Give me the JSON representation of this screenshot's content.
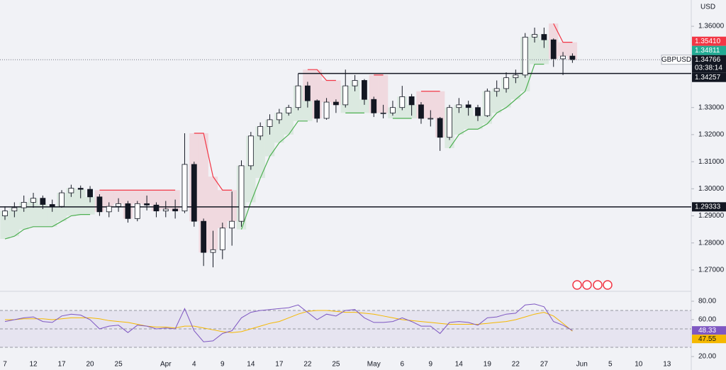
{
  "chart_data": [
    {
      "type": "candlestick",
      "symbol": "GBPUSD",
      "currency": "USD",
      "categories": [
        "7",
        null,
        null,
        "12",
        null,
        null,
        "17",
        null,
        null,
        "20",
        null,
        null,
        "25",
        null,
        null,
        null,
        null,
        "Apr",
        null,
        null,
        "4",
        null,
        null,
        "9",
        null,
        null,
        "14",
        null,
        null,
        "17",
        null,
        null,
        "22",
        null,
        null,
        "25",
        null,
        null,
        null,
        "May",
        null,
        null,
        "6",
        null,
        null,
        "9",
        null,
        null,
        "14",
        null,
        null,
        "19",
        null,
        null,
        "22",
        null,
        null,
        "27",
        null,
        null,
        null,
        "Jun",
        null,
        null,
        "5",
        null,
        null,
        "10",
        null,
        null,
        "13"
      ],
      "open": [
        1.29,
        1.2918,
        1.293,
        1.295,
        1.2965,
        1.2942,
        1.2935,
        1.2985,
        1.3002,
        1.2998,
        1.297,
        1.2915,
        1.2935,
        1.2945,
        1.289,
        1.2945,
        1.294,
        1.2918,
        1.2925,
        1.2918,
        1.309,
        1.288,
        1.2765,
        1.2775,
        1.2855,
        1.288,
        1.3085,
        1.3195,
        1.323,
        1.3255,
        1.328,
        1.33,
        1.338,
        1.3325,
        1.326,
        1.332,
        1.331,
        1.338,
        1.34,
        1.333,
        1.328,
        1.328,
        1.33,
        1.334,
        1.331,
        1.326,
        1.326,
        1.319,
        1.33,
        1.331,
        1.33,
        1.327,
        1.336,
        1.337,
        1.341,
        1.342,
        1.356,
        1.357,
        1.355,
        1.348,
        1.349,
        null,
        null,
        null,
        null,
        null,
        null,
        null,
        null,
        null,
        null
      ],
      "high": [
        1.2935,
        1.295,
        1.2975,
        1.2985,
        1.2975,
        1.296,
        1.2995,
        1.3015,
        1.3012,
        1.301,
        1.298,
        1.295,
        1.2965,
        1.2955,
        1.2955,
        1.2975,
        1.295,
        1.2955,
        1.296,
        1.3205,
        1.31,
        1.289,
        1.2845,
        1.2875,
        1.299,
        1.3105,
        1.321,
        1.3245,
        1.3275,
        1.3295,
        1.331,
        1.3425,
        1.3395,
        1.333,
        1.3335,
        1.333,
        1.344,
        1.342,
        1.3405,
        1.334,
        1.331,
        1.3325,
        1.338,
        1.335,
        1.332,
        1.329,
        1.3265,
        1.331,
        1.3335,
        1.3325,
        1.331,
        1.337,
        1.34,
        1.343,
        1.344,
        1.3575,
        1.3595,
        1.3595,
        1.3555,
        1.3505,
        1.35,
        null,
        null,
        null,
        null,
        null,
        null,
        null,
        null,
        null,
        null
      ],
      "low": [
        1.2885,
        1.2895,
        1.2915,
        1.293,
        1.2925,
        1.2915,
        1.293,
        1.297,
        1.2965,
        1.295,
        1.29,
        1.2895,
        1.2915,
        1.2875,
        1.288,
        1.292,
        1.2895,
        1.2895,
        1.289,
        1.291,
        1.286,
        1.2715,
        1.271,
        1.274,
        1.279,
        1.286,
        1.307,
        1.318,
        1.32,
        1.324,
        1.327,
        1.329,
        1.33,
        1.3245,
        1.3255,
        1.328,
        1.33,
        1.336,
        1.331,
        1.3265,
        1.326,
        1.327,
        1.329,
        1.327,
        1.324,
        1.323,
        1.314,
        1.318,
        1.328,
        1.327,
        1.325,
        1.3265,
        1.334,
        1.3355,
        1.339,
        1.341,
        1.354,
        1.352,
        1.345,
        1.342,
        1.3465,
        null,
        null,
        null,
        null,
        null,
        null,
        null,
        null,
        null,
        null
      ],
      "close": [
        1.2918,
        1.293,
        1.295,
        1.2965,
        1.2942,
        1.2935,
        1.2985,
        1.3002,
        1.2998,
        1.297,
        1.2915,
        1.2935,
        1.2945,
        1.289,
        1.2945,
        1.294,
        1.2918,
        1.2925,
        1.2918,
        1.309,
        1.288,
        1.2765,
        1.2775,
        1.2855,
        1.288,
        1.3085,
        1.3195,
        1.323,
        1.3255,
        1.328,
        1.33,
        1.338,
        1.3325,
        1.326,
        1.332,
        1.331,
        1.338,
        1.34,
        1.333,
        1.328,
        1.328,
        1.33,
        1.334,
        1.331,
        1.326,
        1.326,
        1.319,
        1.33,
        1.331,
        1.33,
        1.327,
        1.336,
        1.337,
        1.341,
        1.342,
        1.356,
        1.357,
        1.355,
        1.348,
        1.349,
        1.34766,
        null,
        null,
        null,
        null,
        null,
        null,
        null,
        null,
        null,
        null
      ],
      "up_color": "#ffffff",
      "down_color": "#131722",
      "wick_color": "#131722",
      "countdown": "03:38:14",
      "supertrend": {
        "up_color": "#4caf50",
        "down_color": "#f23645",
        "lower": [
          1.2815,
          1.2825,
          1.285,
          1.286,
          1.286,
          1.286,
          1.288,
          1.29,
          1.2905,
          1.2905,
          null,
          null,
          null,
          null,
          null,
          null,
          null,
          null,
          null,
          null,
          null,
          null,
          null,
          null,
          null,
          1.285,
          1.295,
          1.304,
          1.312,
          1.317,
          1.32,
          1.325,
          1.325,
          null,
          null,
          null,
          1.328,
          1.328,
          1.328,
          null,
          null,
          1.326,
          1.326,
          1.326,
          null,
          null,
          null,
          1.315,
          1.32,
          1.322,
          1.322,
          1.324,
          1.328,
          1.33,
          1.333,
          1.336,
          1.346,
          1.346,
          null,
          null,
          null,
          null,
          null,
          null,
          null,
          null,
          null,
          null,
          null,
          null,
          null
        ],
        "upper": [
          null,
          null,
          null,
          null,
          null,
          null,
          null,
          null,
          null,
          null,
          1.2995,
          1.2995,
          1.2995,
          1.2995,
          1.2995,
          1.2995,
          1.2995,
          1.2995,
          1.2995,
          null,
          1.3205,
          1.3205,
          1.3045,
          1.2995,
          1.2995,
          null,
          null,
          null,
          null,
          null,
          null,
          null,
          1.344,
          1.344,
          1.34,
          1.34,
          null,
          null,
          null,
          1.342,
          1.342,
          null,
          null,
          null,
          1.336,
          1.336,
          1.336,
          null,
          null,
          null,
          null,
          null,
          null,
          null,
          null,
          null,
          null,
          null,
          1.361,
          1.3541,
          1.3541,
          null,
          null,
          null,
          null,
          null,
          null,
          null,
          null,
          null,
          null
        ]
      },
      "price_labels": [
        {
          "value": 1.3541,
          "label": "1.35410",
          "color": "#f23645"
        },
        {
          "value": 1.34811,
          "label": "1.34811",
          "color": "#22ab94"
        }
      ],
      "hlines": [
        {
          "value": 1.34257,
          "label": "1.34257"
        },
        {
          "value": 1.29333,
          "label": "1.29333"
        }
      ],
      "ylim": [
        1.2624,
        1.3697
      ],
      "yticks": [
        {
          "value": 1.36,
          "label": "1.36000"
        },
        {
          "value": 1.33,
          "label": "1.33000"
        },
        {
          "value": 1.32,
          "label": "1.32000"
        },
        {
          "value": 1.31,
          "label": "1.31000"
        },
        {
          "value": 1.3,
          "label": "1.30000"
        },
        {
          "value": 1.29,
          "label": "1.29000"
        },
        {
          "value": 1.28,
          "label": "1.28000"
        },
        {
          "value": 1.27,
          "label": "1.27000"
        }
      ]
    },
    {
      "type": "rsi",
      "rsi": [
        58,
        60,
        62,
        63,
        58,
        57,
        64,
        66,
        65,
        60,
        50,
        53,
        54,
        46,
        54,
        53,
        50,
        51,
        50,
        72,
        48,
        36,
        37,
        45,
        48,
        62,
        68,
        70,
        71,
        72,
        73,
        76,
        68,
        60,
        66,
        64,
        70,
        71,
        62,
        57,
        57,
        58,
        62,
        58,
        53,
        53,
        45,
        57,
        58,
        57,
        54,
        62,
        63,
        66,
        67,
        76,
        77,
        74,
        58,
        54,
        48.33,
        null,
        null,
        null,
        null,
        null,
        null,
        null,
        null,
        null,
        null
      ],
      "rsi_ma": [
        60,
        60,
        61,
        61,
        61,
        60,
        61,
        62,
        62,
        62,
        61,
        59,
        58,
        57,
        55,
        53,
        52,
        52,
        51,
        53,
        53,
        51,
        49,
        47,
        46,
        47,
        50,
        53,
        56,
        58,
        62,
        66,
        69,
        70,
        70,
        69,
        68,
        68,
        67,
        66,
        64,
        62,
        60,
        59,
        58,
        57,
        56,
        55,
        55,
        55,
        55,
        56,
        57,
        58,
        60,
        63,
        66,
        68,
        64,
        56,
        47.55,
        null,
        null,
        null,
        null,
        null,
        null,
        null,
        null,
        null,
        null
      ],
      "rsi_color": "#7e57c2",
      "ma_color": "#f5b800",
      "upper_band": 70,
      "middle_band": 50,
      "lower_band": 30,
      "ylim": [
        17.7,
        90
      ],
      "yticks": [
        {
          "value": 80,
          "label": "80.00"
        },
        {
          "value": 60,
          "label": "60.00"
        },
        {
          "value": 20,
          "label": "20.00"
        }
      ]
    }
  ]
}
